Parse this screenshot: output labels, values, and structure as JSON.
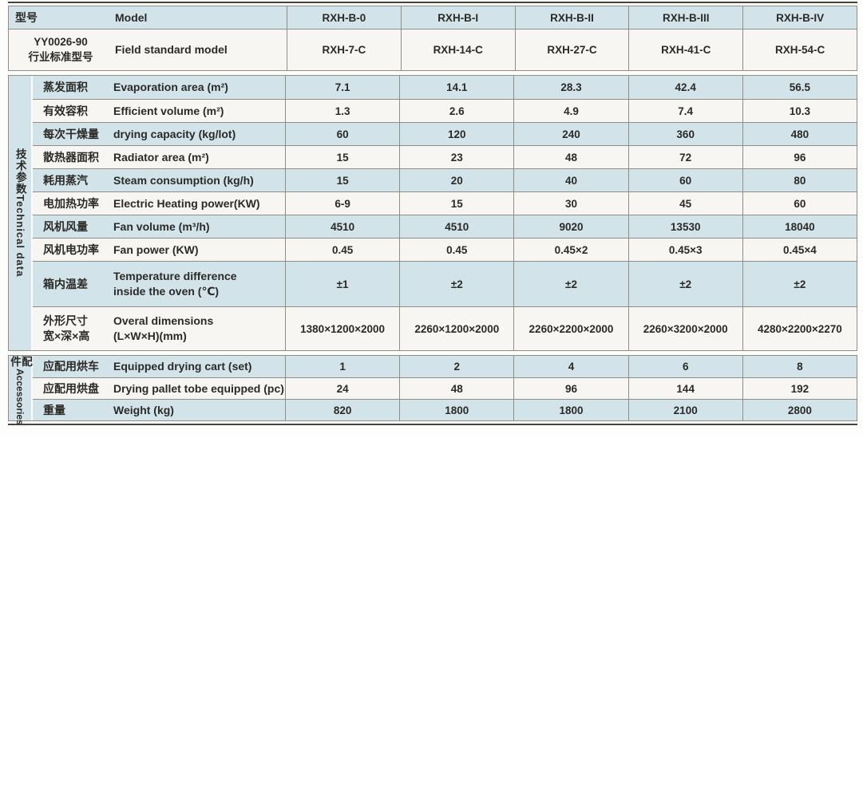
{
  "colors": {
    "row_blue": "#d2e4ea",
    "row_white": "#f8f6f3",
    "line": "#8f8d86",
    "dark": "#45443f",
    "text": "#2b2a27",
    "page_bg": "#fdfdfb"
  },
  "header": {
    "model_zh": "型号",
    "model_en": "Model",
    "models": [
      "RXH-B-0",
      "RXH-B-I",
      "RXH-B-II",
      "RXH-B-III",
      "RXH-B-IV"
    ],
    "standard_zh": "YY0026-90\n行业标准型号",
    "standard_en": "Field standard model",
    "standard_models": [
      "RXH-7-C",
      "RXH-14-C",
      "RXH-27-C",
      "RXH-41-C",
      "RXH-54-C"
    ]
  },
  "technical": {
    "group_zh": "技术参数",
    "group_en": "Technical data",
    "rows": [
      {
        "zh": "蒸发面积",
        "en": "Evaporation area (m²)",
        "values": [
          "7.1",
          "14.1",
          "28.3",
          "42.4",
          "56.5"
        ]
      },
      {
        "zh": "有效容积",
        "en": "Efficient volume (m²)",
        "values": [
          "1.3",
          "2.6",
          "4.9",
          "7.4",
          "10.3"
        ]
      },
      {
        "zh": "每次干燥量",
        "en": "drying capacity (kg/lot)",
        "values": [
          "60",
          "120",
          "240",
          "360",
          "480"
        ]
      },
      {
        "zh": "散热器面积",
        "en": "Radiator area (m²)",
        "values": [
          "15",
          "23",
          "48",
          "72",
          "96"
        ]
      },
      {
        "zh": "耗用蒸汽",
        "en": "Steam consumption (kg/h)",
        "values": [
          "15",
          "20",
          "40",
          "60",
          "80"
        ]
      },
      {
        "zh": "电加热功率",
        "en": "Electric Heating power(KW)",
        "values": [
          "6-9",
          "15",
          "30",
          "45",
          "60"
        ]
      },
      {
        "zh": "风机风量",
        "en": "Fan volume (m³/h)",
        "values": [
          "4510",
          "4510",
          "9020",
          "13530",
          "18040"
        ]
      },
      {
        "zh": "风机电功率",
        "en": "Fan power (KW)",
        "values": [
          "0.45",
          "0.45",
          "0.45×2",
          "0.45×3",
          "0.45×4"
        ]
      },
      {
        "zh": "箱内温差",
        "en": "Temperature difference\ninside the oven (℃)",
        "values": [
          "±1",
          "±2",
          "±2",
          "±2",
          "±2"
        ]
      },
      {
        "zh": "外形尺寸\n宽×深×高",
        "en": "Overal dimensions\n(L×W×H)(mm)",
        "values": [
          "1380×1200×2000",
          "2260×1200×2000",
          "2260×2200×2000",
          "2260×3200×2000",
          "4280×2200×2270"
        ]
      }
    ]
  },
  "accessories": {
    "group_zh": "配件",
    "group_en": "Accessories",
    "rows": [
      {
        "zh": "应配用烘车",
        "en": "Equipped drying cart (set)",
        "values": [
          "1",
          "2",
          "4",
          "6",
          "8"
        ]
      },
      {
        "zh": "应配用烘盘",
        "en": "Drying pallet tobe equipped (pc)",
        "values": [
          "24",
          "48",
          "96",
          "144",
          "192"
        ]
      },
      {
        "zh": "重量",
        "en": "Weight (kg)",
        "values": [
          "820",
          "1800",
          "1800",
          "2100",
          "2800"
        ]
      }
    ]
  }
}
